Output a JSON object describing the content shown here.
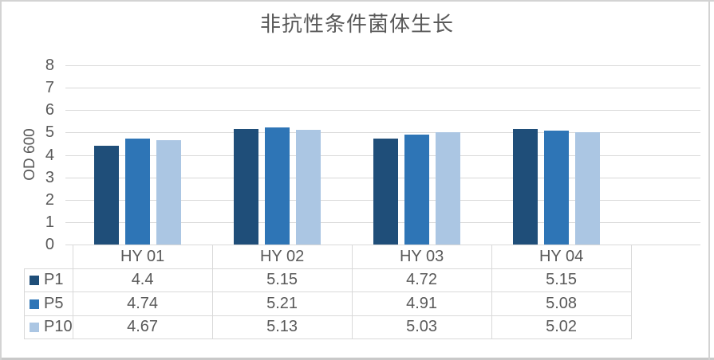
{
  "chart_data": {
    "type": "bar",
    "title": "非抗性条件菌体生长",
    "xlabel": "",
    "ylabel": "OD 600",
    "ylim": [
      0,
      8
    ],
    "ytick_step": 1,
    "grid": true,
    "legend_position": "data-table-left",
    "categories": [
      "HY 01",
      "HY 02",
      "HY 03",
      "HY 04"
    ],
    "series": [
      {
        "name": "P1",
        "color": "#1F4E79",
        "values": [
          4.4,
          5.15,
          4.72,
          5.15
        ]
      },
      {
        "name": "P5",
        "color": "#2E75B6",
        "values": [
          4.74,
          5.21,
          4.91,
          5.08
        ]
      },
      {
        "name": "P10",
        "color": "#ABC6E3",
        "values": [
          4.67,
          5.13,
          5.03,
          5.02
        ]
      }
    ]
  },
  "colors": {
    "gridline": "#D9D9D9",
    "table_border": "#D9D9D9",
    "text": "#595959",
    "frame": "#D3D3D3",
    "background": "#FFFFFF"
  }
}
